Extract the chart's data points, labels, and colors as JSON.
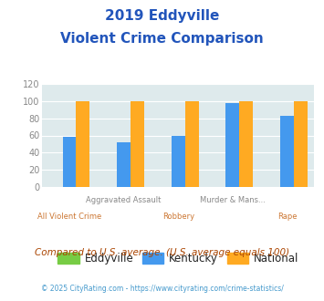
{
  "title_line1": "2019 Eddyville",
  "title_line2": "Violent Crime Comparison",
  "title_color": "#2255bb",
  "categories": [
    "All Violent Crime",
    "Aggravated Assault",
    "Robbery",
    "Murder & Mans...",
    "Rape"
  ],
  "top_labels": [
    "",
    "Aggravated Assault",
    "",
    "Murder & Mans...",
    ""
  ],
  "bot_labels": [
    "All Violent Crime",
    "",
    "Robbery",
    "",
    "Rape"
  ],
  "eddyville_values": [
    0,
    0,
    0,
    0,
    0
  ],
  "kentucky_values": [
    58,
    52,
    60,
    98,
    83
  ],
  "national_values": [
    100,
    100,
    100,
    100,
    100
  ],
  "eddyville_color": "#77cc44",
  "kentucky_color": "#4499ee",
  "national_color": "#ffaa22",
  "ylim": [
    0,
    120
  ],
  "yticks": [
    0,
    20,
    40,
    60,
    80,
    100,
    120
  ],
  "bg_color": "#deeaec",
  "subtitle_text": "Compared to U.S. average. (U.S. average equals 100)",
  "subtitle_color": "#aa4400",
  "footer_text": "© 2025 CityRating.com - https://www.cityrating.com/crime-statistics/",
  "footer_color": "#4499cc",
  "tick_label_color_y": "#888888",
  "tick_label_color_top": "#888888",
  "tick_label_color_bot": "#cc7733",
  "bar_width": 0.25,
  "legend_label_e": "Eddyville",
  "legend_label_k": "Kentucky",
  "legend_label_n": "National"
}
